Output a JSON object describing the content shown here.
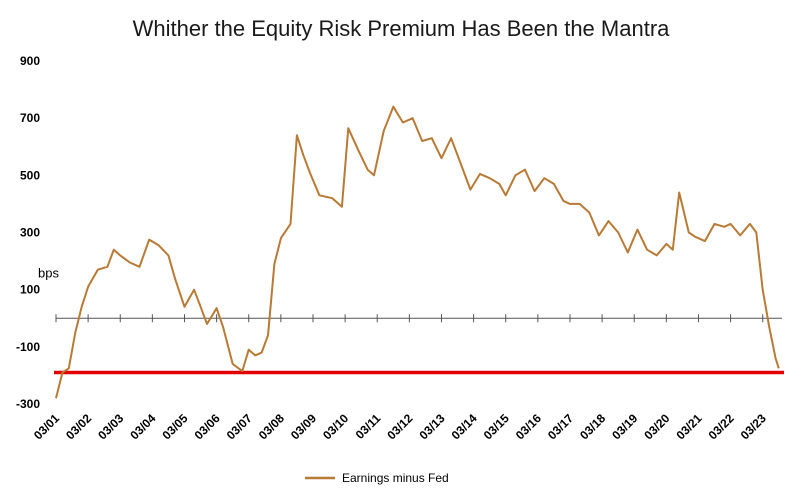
{
  "chart_data": {
    "type": "line",
    "title": "Whither the Equity Risk Premium Has Been the Mantra",
    "xlabel": "",
    "ylabel": "bps",
    "ylim": [
      -300,
      900
    ],
    "y_ticks": [
      900,
      700,
      500,
      300,
      100,
      -100,
      -300
    ],
    "y_tick_labels": [
      "900",
      "700",
      "500",
      "300",
      "100",
      "-100",
      "-300"
    ],
    "x_tick_labels": [
      "03/01",
      "03/02",
      "03/03",
      "03/04",
      "03/05",
      "03/06",
      "03/07",
      "03/08",
      "03/09",
      "03/10",
      "03/11",
      "03/12",
      "03/13",
      "03/14",
      "03/15",
      "03/16",
      "03/17",
      "03/18",
      "03/19",
      "03/20",
      "03/21",
      "03/22",
      "03/23"
    ],
    "x_range": [
      2001.0,
      2023.6
    ],
    "grid": false,
    "zero_line": true,
    "legend": "bottom-center",
    "series": [
      {
        "name": "Earnings minus Fed",
        "color": "#B87A35",
        "x": [
          2001.0,
          2001.2,
          2001.4,
          2001.6,
          2001.8,
          2002.0,
          2002.3,
          2002.6,
          2002.8,
          2003.0,
          2003.3,
          2003.6,
          2003.9,
          2004.2,
          2004.5,
          2004.7,
          2005.0,
          2005.3,
          2005.5,
          2005.7,
          2006.0,
          2006.2,
          2006.5,
          2006.8,
          2007.0,
          2007.2,
          2007.4,
          2007.6,
          2007.8,
          2008.0,
          2008.3,
          2008.5,
          2008.7,
          2008.9,
          2009.2,
          2009.6,
          2009.9,
          2010.1,
          2010.4,
          2010.7,
          2010.9,
          2011.2,
          2011.5,
          2011.8,
          2012.1,
          2012.4,
          2012.7,
          2013.0,
          2013.3,
          2013.6,
          2013.9,
          2014.2,
          2014.5,
          2014.8,
          2015.0,
          2015.3,
          2015.6,
          2015.9,
          2016.2,
          2016.5,
          2016.8,
          2017.0,
          2017.3,
          2017.6,
          2017.9,
          2018.2,
          2018.5,
          2018.8,
          2019.1,
          2019.4,
          2019.7,
          2020.0,
          2020.2,
          2020.4,
          2020.7,
          2020.9,
          2021.2,
          2021.5,
          2021.8,
          2022.0,
          2022.3,
          2022.6,
          2022.8,
          2023.0,
          2023.2,
          2023.4,
          2023.5
        ],
        "y": [
          -280,
          -190,
          -175,
          -50,
          40,
          110,
          170,
          180,
          240,
          220,
          195,
          180,
          275,
          255,
          220,
          140,
          40,
          100,
          40,
          -20,
          35,
          -30,
          -160,
          -185,
          -110,
          -130,
          -120,
          -60,
          190,
          280,
          330,
          640,
          570,
          510,
          430,
          420,
          390,
          665,
          590,
          520,
          500,
          655,
          740,
          685,
          700,
          620,
          630,
          560,
          630,
          540,
          450,
          505,
          490,
          470,
          430,
          500,
          520,
          445,
          490,
          470,
          410,
          400,
          400,
          370,
          290,
          340,
          300,
          230,
          310,
          240,
          220,
          260,
          240,
          440,
          300,
          285,
          270,
          330,
          320,
          330,
          290,
          330,
          300,
          100,
          -30,
          -140,
          -175
        ],
        "line_width": 2
      }
    ],
    "reference_lines": [
      {
        "y": -190,
        "color": "#E00000"
      }
    ],
    "annotations": [
      {
        "text": "bps",
        "y": 160
      }
    ]
  }
}
